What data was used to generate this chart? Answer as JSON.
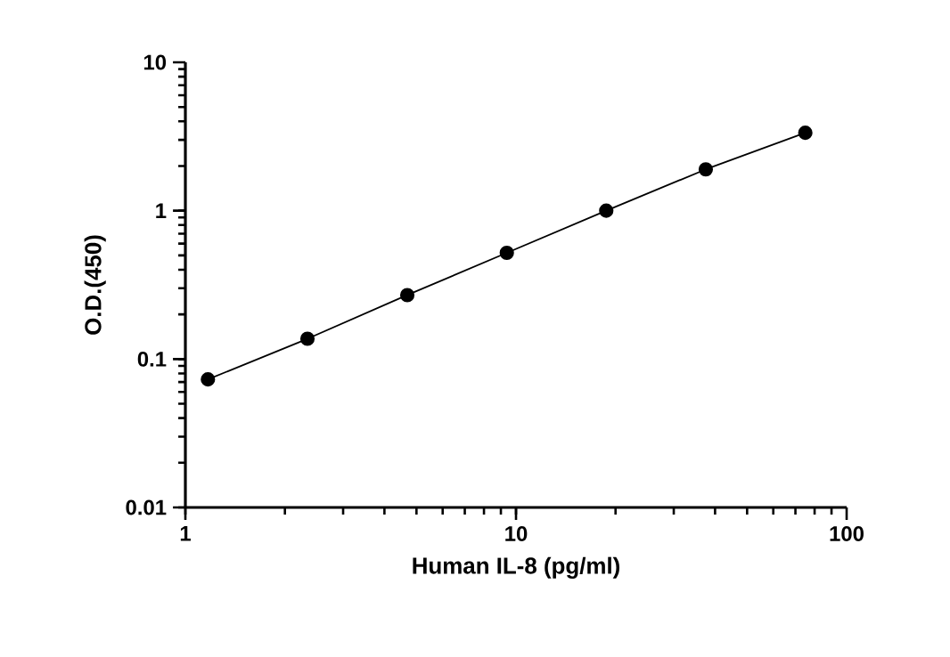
{
  "chart_data": {
    "type": "line",
    "xlabel": "Human IL-8 (pg/ml)",
    "ylabel": "O.D.(450)",
    "log": "xy",
    "marker": "circle",
    "line_style": "solid",
    "series": [
      {
        "color": "#000000",
        "x": [
          1.17,
          2.34,
          4.69,
          9.38,
          18.75,
          37.5,
          75
        ],
        "values": [
          0.073,
          0.137,
          0.27,
          0.52,
          1.0,
          1.9,
          3.35
        ]
      }
    ],
    "xlim": [
      1,
      100
    ],
    "xticks": [
      1,
      10,
      100
    ],
    "ylim": [
      0.01,
      10
    ],
    "yticks": [
      0.01,
      0.1,
      1,
      10
    ]
  }
}
